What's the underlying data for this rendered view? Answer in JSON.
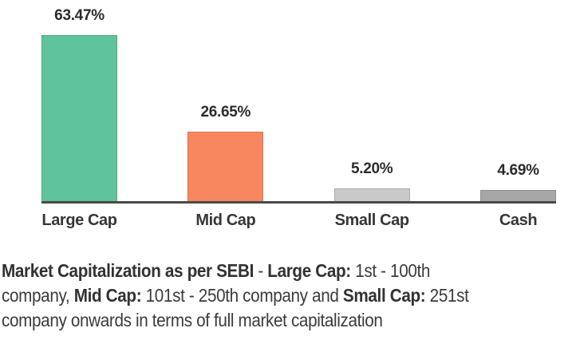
{
  "page": {
    "background": "#ffffff"
  },
  "chart_data": {
    "type": "bar",
    "categories": [
      "Large Cap",
      "Mid Cap",
      "Small Cap",
      "Cash"
    ],
    "values": [
      63.47,
      26.65,
      5.2,
      4.69
    ],
    "value_labels": [
      "63.47%",
      "26.65%",
      "5.20%",
      "4.69%"
    ],
    "bar_colors": [
      "#5fc39c",
      "#f8875f",
      "#c9c9c9",
      "#a7a7a7"
    ],
    "title": "",
    "xlabel": "",
    "ylabel": "",
    "ylim": [
      0,
      70
    ],
    "grid": false,
    "legend_position": "none",
    "axis_color": "#4a4a4a",
    "value_label_color": "#2b2b2b",
    "category_label_color": "#363636"
  },
  "caption": {
    "full_text": "Market Capitalization as per SEBI - Large Cap: 1st - 100th company, Mid Cap: 101st - 250th company and Small Cap: 251st company onwards in terms of full market capitalization",
    "lines": [
      [
        {
          "t": "Market Capitalization as per SEBI",
          "b": true
        },
        {
          "t": " - ",
          "b": false
        },
        {
          "t": "Large Cap:",
          "b": true
        },
        {
          "t": " 1st - 100th",
          "b": false
        }
      ],
      [
        {
          "t": "company, ",
          "b": false
        },
        {
          "t": "Mid Cap:",
          "b": true
        },
        {
          "t": " 101st - 250th company and ",
          "b": false
        },
        {
          "t": "Small Cap:",
          "b": true
        },
        {
          "t": " 251st",
          "b": false
        }
      ],
      [
        {
          "t": "company onwards in terms of full market capitalization",
          "b": false
        }
      ]
    ]
  }
}
